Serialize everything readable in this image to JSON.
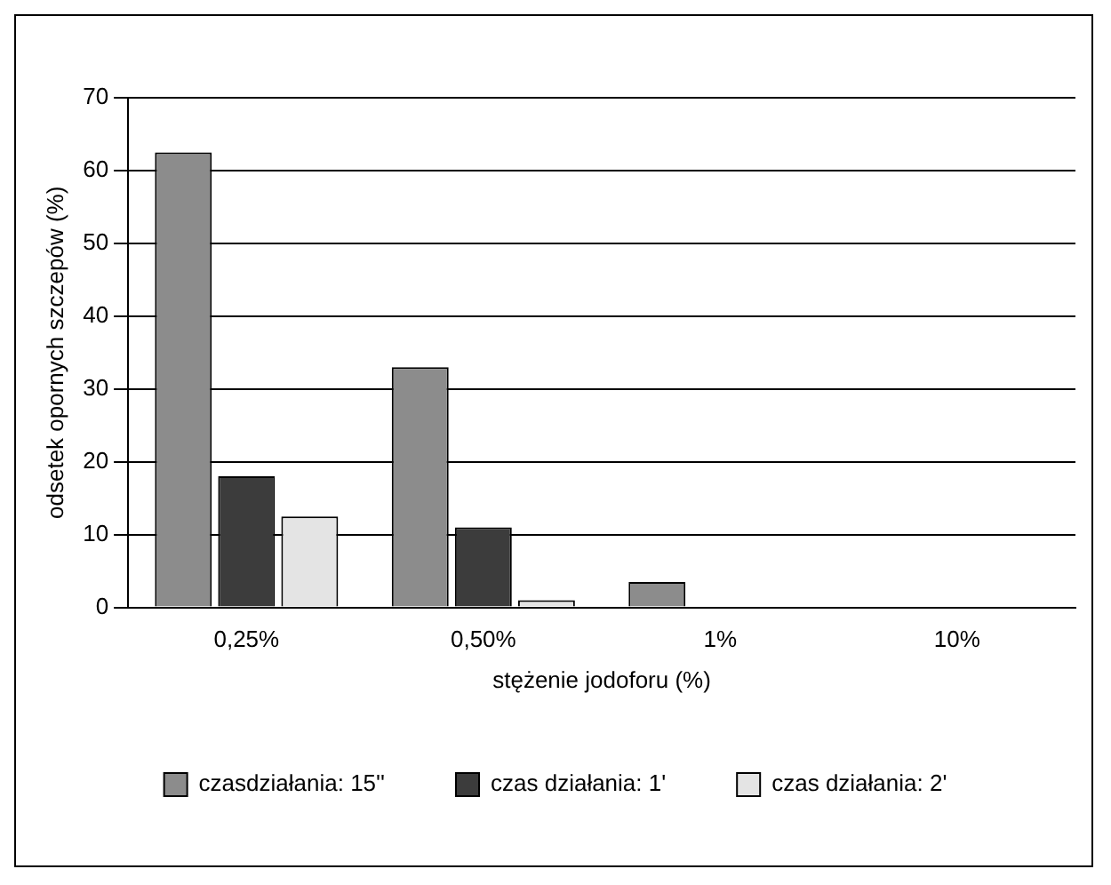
{
  "chart_data": {
    "type": "bar",
    "xlabel": "stężenie jodoforu (%)",
    "ylabel": "odsetek opornych szczepów (%)",
    "categories": [
      "0,25%",
      "0,50%",
      "1%",
      "10%"
    ],
    "series": [
      {
        "name": "czasdziałania: 15''",
        "color": "#8c8c8c",
        "values": [
          62.5,
          33,
          3.5,
          0
        ]
      },
      {
        "name": "czas działania: 1'",
        "color": "#3c3c3c",
        "values": [
          18,
          11,
          0,
          0
        ]
      },
      {
        "name": "czas działania: 2'",
        "color": "#e4e4e4",
        "values": [
          12.5,
          1,
          0,
          0
        ]
      }
    ],
    "ylim": [
      0,
      70
    ],
    "yticks": [
      0,
      10,
      20,
      30,
      40,
      50,
      60,
      70
    ],
    "grid": "y",
    "legend": "bottom"
  }
}
